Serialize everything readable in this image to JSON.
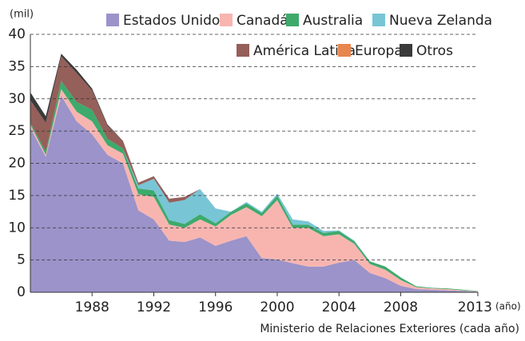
{
  "chart_data": {
    "type": "area",
    "stacked": true,
    "y_label": "(mil)",
    "x_label": "(año)",
    "source": "Ministerio de Relaciones Exteriores (cada año)",
    "x": [
      1984,
      1985,
      1986,
      1987,
      1988,
      1989,
      1990,
      1991,
      1992,
      1993,
      1994,
      1995,
      1996,
      1997,
      1998,
      1999,
      2000,
      2001,
      2002,
      2003,
      2004,
      2005,
      2006,
      2007,
      2008,
      2009,
      2010,
      2011,
      2012,
      2013
    ],
    "series": [
      {
        "name": "Estados Unidos",
        "color": "#9b93c9",
        "values": [
          25.5,
          21,
          30.5,
          26.5,
          24.5,
          21.3,
          20,
          12.7,
          11.3,
          8,
          7.8,
          8.5,
          7.2,
          8,
          8.7,
          5.3,
          5.1,
          4.5,
          4,
          4,
          4.6,
          5,
          3,
          2.2,
          1,
          0.5,
          0.4,
          0.3,
          0.2,
          0.1
        ]
      },
      {
        "name": "Canadá",
        "color": "#f8b5b0",
        "values": [
          0.5,
          0.3,
          1,
          1.5,
          2,
          1.5,
          1.5,
          2.5,
          3.5,
          2.5,
          2.2,
          2.8,
          3,
          4,
          4.5,
          6.5,
          9.2,
          5.5,
          6,
          4.7,
          4.4,
          2.5,
          1.4,
          1.3,
          0.9,
          0.3,
          0.2,
          0.2,
          0.1,
          0.05
        ]
      },
      {
        "name": "Australia",
        "color": "#3daa6c",
        "values": [
          0.3,
          0.5,
          1.3,
          1.5,
          1.8,
          1,
          0.8,
          0.9,
          1,
          0.7,
          0.6,
          0.8,
          0.5,
          0.5,
          0.6,
          0.5,
          0.7,
          0.5,
          0.5,
          0.5,
          0.5,
          0.4,
          0.4,
          0.5,
          0.4,
          0.15,
          0.1,
          0.1,
          0.1,
          0.05
        ]
      },
      {
        "name": "Nueva Zelanda",
        "color": "#78c5d6",
        "values": [
          0,
          0,
          0,
          0,
          0,
          0,
          0,
          0.5,
          1.8,
          2.7,
          3.7,
          3.9,
          2.3,
          0,
          0.2,
          0.2,
          0.3,
          0.8,
          0.5,
          0.3,
          0.1,
          0.1,
          0,
          0,
          0,
          0,
          0,
          0,
          0,
          0
        ]
      },
      {
        "name": "América Latina",
        "color": "#955f5a",
        "values": [
          3.5,
          4.5,
          3.8,
          4.5,
          3,
          2,
          1.2,
          0.4,
          0.4,
          0.6,
          0.5,
          0,
          0,
          0,
          0,
          0,
          0,
          0,
          0,
          0,
          0,
          0,
          0,
          0,
          0,
          0,
          0,
          0,
          0,
          0
        ]
      },
      {
        "name": "Europa",
        "color": "#e8864f",
        "values": [
          0,
          0,
          0,
          0,
          0,
          0,
          0,
          0,
          0,
          0,
          0,
          0,
          0,
          0,
          0,
          0,
          0,
          0,
          0,
          0,
          0,
          0,
          0,
          0,
          0,
          0,
          0,
          0,
          0,
          0
        ]
      },
      {
        "name": "Otros",
        "color": "#3a3a3a",
        "values": [
          1.2,
          1,
          0.4,
          0.5,
          0.3,
          0.2,
          0,
          0,
          0,
          0,
          0,
          0,
          0,
          0,
          0,
          0,
          0,
          0,
          0,
          0,
          0,
          0,
          0,
          0,
          0,
          0,
          0,
          0,
          0,
          0
        ]
      }
    ],
    "xlim": [
      1984,
      2013
    ],
    "xticks": [
      1988,
      1992,
      1996,
      2000,
      2004,
      2008,
      2013
    ],
    "ylim": [
      0,
      40
    ],
    "yticks": [
      0,
      5,
      10,
      15,
      20,
      25,
      30,
      35,
      40
    ],
    "grid": true,
    "legend": "top-right"
  }
}
